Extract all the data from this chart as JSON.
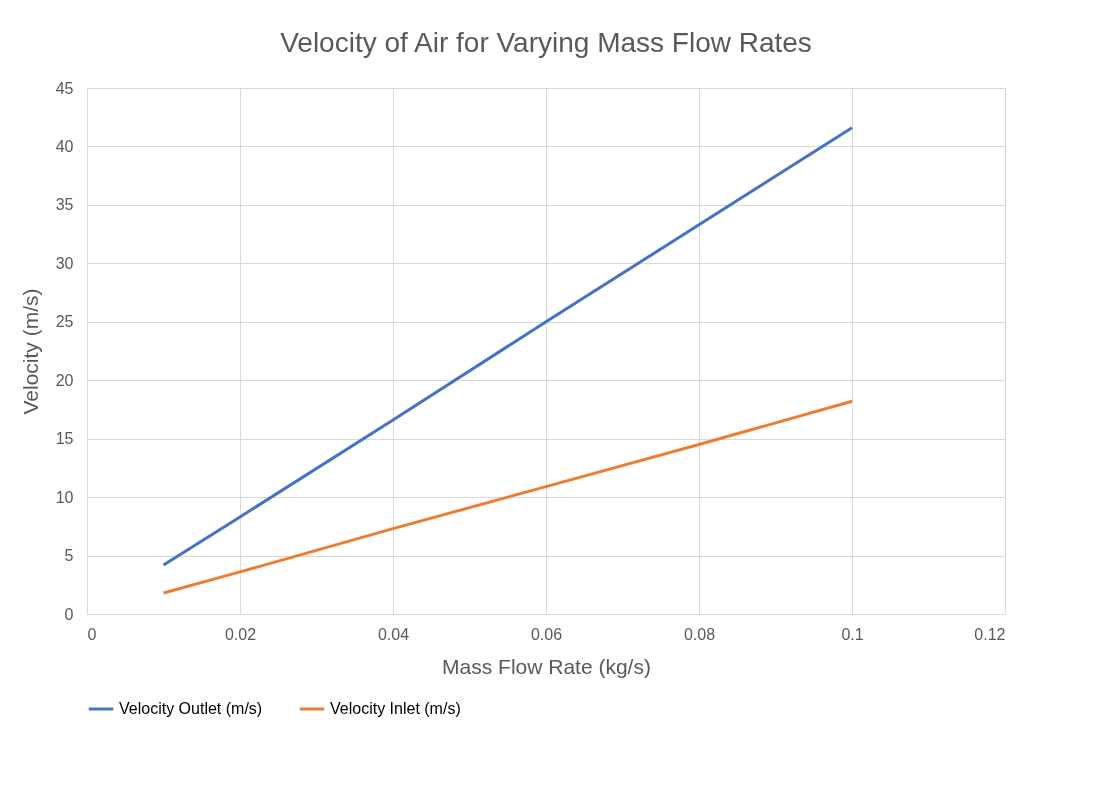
{
  "chart_data": {
    "type": "line",
    "title": "Velocity of Air for Varying Mass Flow Rates",
    "xlabel": "Mass Flow Rate (kg/s)",
    "ylabel": "Velocity (m/s)",
    "x": [
      0.01,
      0.02,
      0.04,
      0.06,
      0.08,
      0.1
    ],
    "series": [
      {
        "name": "Velocity Outlet (m/s)",
        "color": "#4472c4",
        "values": [
          4.2,
          8.3,
          16.6,
          25.0,
          33.3,
          41.6
        ]
      },
      {
        "name": "Velocity Inlet (m/s)",
        "color": "#ed7d31",
        "values": [
          1.8,
          3.6,
          7.3,
          10.9,
          14.5,
          18.2
        ]
      }
    ],
    "xlim": [
      0,
      0.12
    ],
    "xticks": [
      0,
      0.02,
      0.04,
      0.06,
      0.08,
      0.1,
      0.12
    ],
    "ylim": [
      0,
      45
    ],
    "yticks": [
      0,
      5,
      10,
      15,
      20,
      25,
      30,
      35,
      40,
      45
    ],
    "grid": true,
    "legend": "bottom",
    "marker": "none",
    "line_style": "solid"
  }
}
